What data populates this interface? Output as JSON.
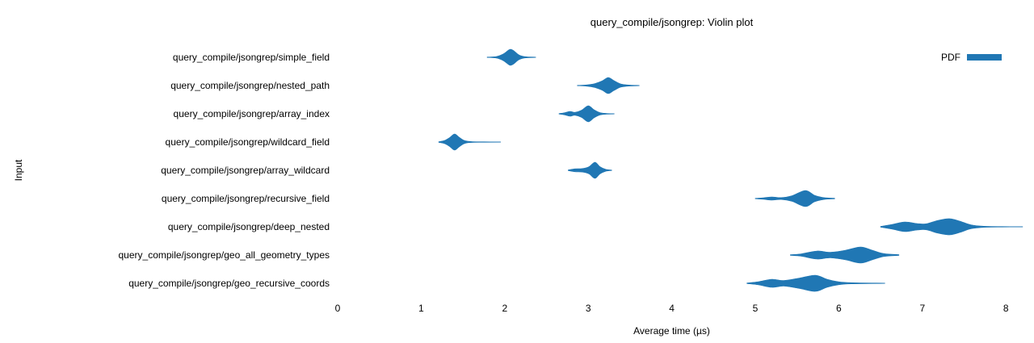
{
  "chart_data": {
    "type": "violin",
    "title": "query_compile/jsongrep: Violin plot",
    "xlabel": "Average time (µs)",
    "ylabel": "Input",
    "xlim": [
      0,
      8
    ],
    "x_ticks": [
      0,
      1,
      2,
      3,
      4,
      5,
      6,
      7,
      8
    ],
    "grid": false,
    "legend": [
      {
        "label": "PDF",
        "color": "#2077b4",
        "position": "top-right"
      }
    ],
    "series": [
      {
        "label": "query_compile/jsongrep/simple_field",
        "peak_time_us": 2.07,
        "range_us": [
          1.79,
          2.37
        ],
        "profile": [
          [
            1.79,
            0.03
          ],
          [
            1.9,
            0.1
          ],
          [
            1.98,
            0.4
          ],
          [
            2.04,
            0.85
          ],
          [
            2.07,
            1.0
          ],
          [
            2.11,
            0.8
          ],
          [
            2.17,
            0.3
          ],
          [
            2.24,
            0.08
          ],
          [
            2.37,
            0.02
          ]
        ]
      },
      {
        "label": "query_compile/jsongrep/nested_path",
        "peak_time_us": 3.24,
        "range_us": [
          2.87,
          3.61
        ],
        "profile": [
          [
            2.87,
            0.03
          ],
          [
            2.98,
            0.08
          ],
          [
            3.08,
            0.25
          ],
          [
            3.17,
            0.6
          ],
          [
            3.24,
            1.0
          ],
          [
            3.31,
            0.6
          ],
          [
            3.39,
            0.2
          ],
          [
            3.5,
            0.06
          ],
          [
            3.61,
            0.02
          ]
        ]
      },
      {
        "label": "query_compile/jsongrep/array_index",
        "peak_time_us": 3.0,
        "range_us": [
          2.65,
          3.31
        ],
        "profile": [
          [
            2.65,
            0.03
          ],
          [
            2.71,
            0.12
          ],
          [
            2.78,
            0.3
          ],
          [
            2.84,
            0.18
          ],
          [
            2.92,
            0.45
          ],
          [
            3.0,
            1.0
          ],
          [
            3.07,
            0.5
          ],
          [
            3.14,
            0.15
          ],
          [
            3.22,
            0.05
          ],
          [
            3.31,
            0.02
          ]
        ]
      },
      {
        "label": "query_compile/jsongrep/wildcard_field",
        "peak_time_us": 1.4,
        "range_us": [
          1.21,
          1.95
        ],
        "profile": [
          [
            1.21,
            0.04
          ],
          [
            1.28,
            0.2
          ],
          [
            1.34,
            0.55
          ],
          [
            1.4,
            1.0
          ],
          [
            1.46,
            0.55
          ],
          [
            1.52,
            0.18
          ],
          [
            1.6,
            0.06
          ],
          [
            1.75,
            0.03
          ],
          [
            1.95,
            0.02
          ]
        ]
      },
      {
        "label": "query_compile/jsongrep/array_wildcard",
        "peak_time_us": 3.08,
        "range_us": [
          2.76,
          3.28
        ],
        "profile": [
          [
            2.76,
            0.04
          ],
          [
            2.84,
            0.18
          ],
          [
            2.93,
            0.22
          ],
          [
            3.01,
            0.45
          ],
          [
            3.08,
            1.0
          ],
          [
            3.14,
            0.45
          ],
          [
            3.21,
            0.12
          ],
          [
            3.28,
            0.03
          ]
        ]
      },
      {
        "label": "query_compile/jsongrep/recursive_field",
        "peak_time_us": 5.6,
        "range_us": [
          5.0,
          5.95
        ],
        "profile": [
          [
            5.0,
            0.03
          ],
          [
            5.1,
            0.1
          ],
          [
            5.2,
            0.2
          ],
          [
            5.31,
            0.12
          ],
          [
            5.44,
            0.35
          ],
          [
            5.6,
            1.0
          ],
          [
            5.71,
            0.4
          ],
          [
            5.82,
            0.12
          ],
          [
            5.95,
            0.04
          ]
        ]
      },
      {
        "label": "query_compile/jsongrep/deep_nested",
        "peak_time_us": 7.33,
        "range_us": [
          6.5,
          8.2
        ],
        "profile": [
          [
            6.5,
            0.05
          ],
          [
            6.64,
            0.3
          ],
          [
            6.79,
            0.6
          ],
          [
            6.94,
            0.4
          ],
          [
            7.05,
            0.38
          ],
          [
            7.19,
            0.8
          ],
          [
            7.33,
            1.0
          ],
          [
            7.45,
            0.7
          ],
          [
            7.58,
            0.25
          ],
          [
            7.72,
            0.08
          ],
          [
            7.95,
            0.03
          ],
          [
            8.2,
            0.02
          ]
        ]
      },
      {
        "label": "query_compile/jsongrep/geo_all_geometry_types",
        "peak_time_us": 6.26,
        "range_us": [
          5.42,
          6.72
        ],
        "profile": [
          [
            5.42,
            0.04
          ],
          [
            5.55,
            0.15
          ],
          [
            5.74,
            0.5
          ],
          [
            5.9,
            0.35
          ],
          [
            6.08,
            0.6
          ],
          [
            6.26,
            1.0
          ],
          [
            6.4,
            0.6
          ],
          [
            6.54,
            0.18
          ],
          [
            6.72,
            0.05
          ]
        ]
      },
      {
        "label": "query_compile/jsongrep/geo_recursive_coords",
        "peak_time_us": 5.72,
        "range_us": [
          4.9,
          6.55
        ],
        "profile": [
          [
            4.9,
            0.04
          ],
          [
            5.04,
            0.2
          ],
          [
            5.2,
            0.5
          ],
          [
            5.34,
            0.35
          ],
          [
            5.53,
            0.65
          ],
          [
            5.72,
            1.0
          ],
          [
            5.86,
            0.5
          ],
          [
            6.0,
            0.18
          ],
          [
            6.15,
            0.07
          ],
          [
            6.55,
            0.02
          ]
        ]
      }
    ]
  }
}
